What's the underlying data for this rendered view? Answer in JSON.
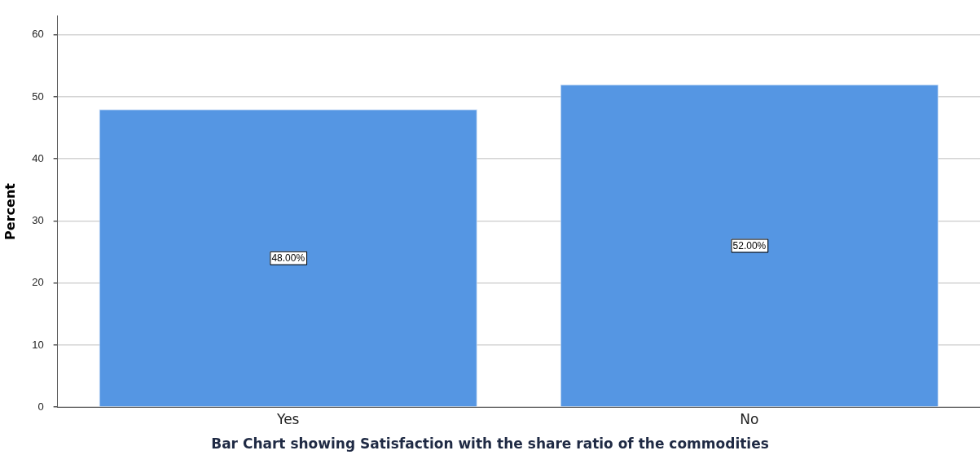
{
  "chart_data": {
    "type": "bar",
    "title": "Bar Chart showing Satisfaction with the share ratio of the commodities",
    "ylabel": "Percent",
    "categories": [
      "Yes",
      "No"
    ],
    "values": [
      48,
      52
    ],
    "value_labels": [
      "48.00%",
      "52.00%"
    ],
    "color": "#5596e3",
    "ylim": [
      0,
      63
    ],
    "yticks": [
      0,
      10,
      20,
      30,
      40,
      50,
      60
    ],
    "grid": "y",
    "legend": false
  }
}
